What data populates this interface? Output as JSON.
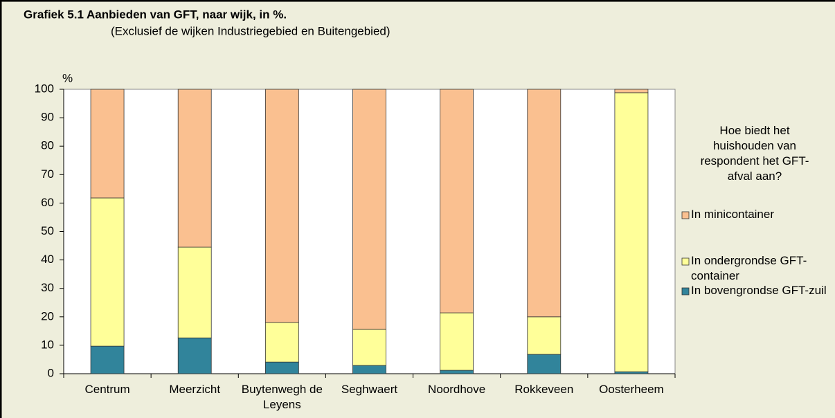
{
  "chart_data": {
    "type": "stacked_bar",
    "title": "Grafiek 5.1  Aanbieden van GFT, naar wijk, in %.",
    "subtitle": "(Exclusief de wijken Industriegebied en Buitengebied)",
    "y_axis_label": "%",
    "legend_title": "Hoe biedt het huishouden van respondent het GFT-afval aan?",
    "categories": [
      "Centrum",
      "Meerzicht",
      "Buytenwegh de Leyens",
      "Seghwaert",
      "Noordhove",
      "Rokkeveen",
      "Oosterheem"
    ],
    "series": [
      {
        "name": "In bovengrondse GFT-zuil",
        "color": "#31849b",
        "values": [
          9.7,
          12.6,
          4.1,
          2.9,
          1.2,
          6.8,
          0.7
        ]
      },
      {
        "name": "In ondergrondse GFT-container",
        "color": "#ffff99",
        "values": [
          52.1,
          31.9,
          13.9,
          12.7,
          20.2,
          13.2,
          98.1
        ]
      },
      {
        "name": "In minicontainer",
        "color": "#fac090",
        "values": [
          38.2,
          55.5,
          82.0,
          84.4,
          78.6,
          80.0,
          1.2
        ]
      }
    ],
    "ylim": [
      0,
      100
    ],
    "yticks": [
      0,
      10,
      20,
      30,
      40,
      50,
      60,
      70,
      80,
      90,
      100
    ],
    "grid": false,
    "legend_position": "right"
  }
}
